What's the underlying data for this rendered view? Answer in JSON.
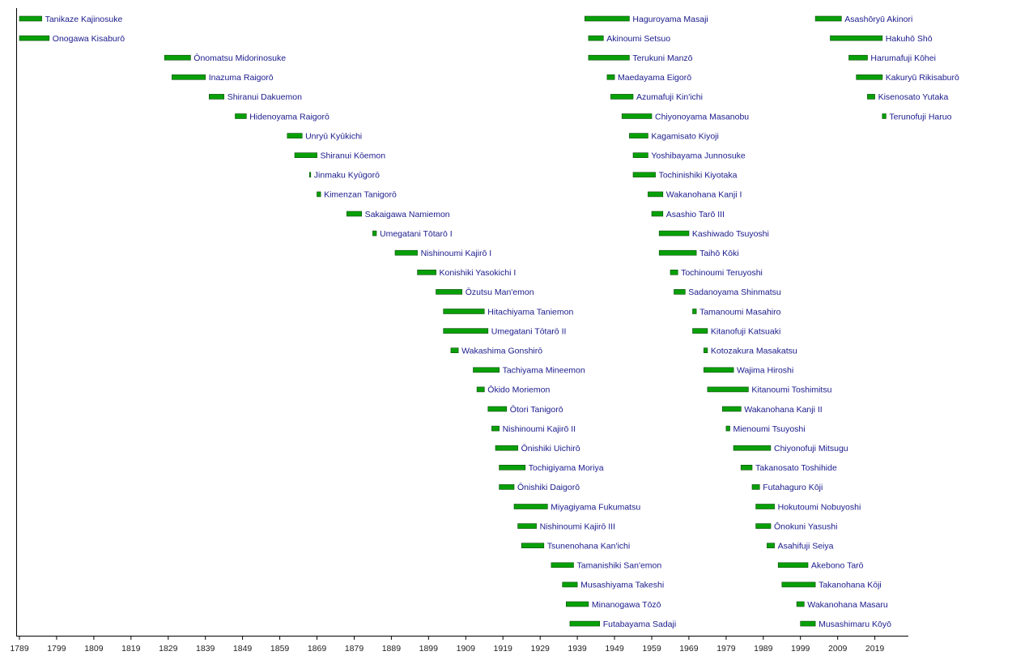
{
  "chart_data": {
    "type": "bar",
    "orientation": "horizontal-timeline",
    "title": "",
    "xlabel": "",
    "ylabel": "",
    "xlim": [
      1788,
      2025
    ],
    "grid": false,
    "legend": "none",
    "x_ticks": [
      1789,
      1799,
      1809,
      1819,
      1829,
      1839,
      1849,
      1859,
      1869,
      1879,
      1889,
      1899,
      1909,
      1919,
      1929,
      1939,
      1949,
      1959,
      1969,
      1979,
      1989,
      1999,
      2009,
      2019
    ],
    "columns": [
      [
        {
          "name": "Tanikaze Kajinosuke",
          "start": 1789,
          "end": 1795
        },
        {
          "name": "Onogawa Kisaburō",
          "start": 1789,
          "end": 1797
        },
        {
          "name": "Ōnomatsu Midorinosuke",
          "start": 1828,
          "end": 1835
        },
        {
          "name": "Inazuma Raigorō",
          "start": 1830,
          "end": 1839
        },
        {
          "name": "Shiranui Dakuemon",
          "start": 1840,
          "end": 1844
        },
        {
          "name": "Hidenoyama Raigorō",
          "start": 1847,
          "end": 1850
        },
        {
          "name": "Unryū Kyūkichi",
          "start": 1861,
          "end": 1865
        },
        {
          "name": "Shiranui Kōemon",
          "start": 1863,
          "end": 1869
        },
        {
          "name": "Jinmaku Kyūgorō",
          "start": 1867,
          "end": 1867.3
        },
        {
          "name": "Kimenzan Tanigorō",
          "start": 1869,
          "end": 1870
        },
        {
          "name": "Sakaigawa Namiemon",
          "start": 1877,
          "end": 1881
        },
        {
          "name": "Umegatani Tōtarō I",
          "start": 1884,
          "end": 1885
        },
        {
          "name": "Nishinoumi Kajirō I",
          "start": 1890,
          "end": 1896
        },
        {
          "name": "Konishiki Yasokichi I",
          "start": 1896,
          "end": 1901
        },
        {
          "name": "Ōzutsu Man'emon",
          "start": 1901,
          "end": 1908
        },
        {
          "name": "Hitachiyama Taniemon",
          "start": 1903,
          "end": 1914
        },
        {
          "name": "Umegatani Tōtarō II",
          "start": 1903,
          "end": 1915
        },
        {
          "name": "Wakashima Gonshirō",
          "start": 1905,
          "end": 1907
        },
        {
          "name": "Tachiyama Mineemon",
          "start": 1911,
          "end": 1918
        },
        {
          "name": "Ōkido Moriemon",
          "start": 1912,
          "end": 1914
        },
        {
          "name": "Ōtori Tanigorō",
          "start": 1915,
          "end": 1920
        },
        {
          "name": "Nishinoumi Kajirō II",
          "start": 1916,
          "end": 1918
        },
        {
          "name": "Ōnishiki Uichirō",
          "start": 1917,
          "end": 1923
        },
        {
          "name": "Tochigiyama Moriya",
          "start": 1918,
          "end": 1925
        },
        {
          "name": "Ōnishiki Daigorō",
          "start": 1918,
          "end": 1922
        },
        {
          "name": "Miyagiyama Fukumatsu",
          "start": 1922,
          "end": 1931
        },
        {
          "name": "Nishinoumi Kajirō III",
          "start": 1923,
          "end": 1928
        },
        {
          "name": "Tsunenohana Kan'ichi",
          "start": 1924,
          "end": 1930
        },
        {
          "name": "Tamanishiki San'emon",
          "start": 1932,
          "end": 1938
        },
        {
          "name": "Musashiyama Takeshi",
          "start": 1935,
          "end": 1939
        },
        {
          "name": "Minanogawa Tōzō",
          "start": 1936,
          "end": 1942
        },
        {
          "name": "Futabayama Sadaji",
          "start": 1937,
          "end": 1945
        }
      ],
      [
        {
          "name": "Haguroyama Masaji",
          "start": 1941,
          "end": 1953
        },
        {
          "name": "Akinoumi Setsuo",
          "start": 1942,
          "end": 1946
        },
        {
          "name": "Terukuni Manzō",
          "start": 1942,
          "end": 1953
        },
        {
          "name": "Maedayama Eigorō",
          "start": 1947,
          "end": 1949
        },
        {
          "name": "Azumafuji Kin'ichi",
          "start": 1948,
          "end": 1954
        },
        {
          "name": "Chiyonoyama Masanobu",
          "start": 1951,
          "end": 1959
        },
        {
          "name": "Kagamisato Kiyoji",
          "start": 1953,
          "end": 1958
        },
        {
          "name": "Yoshibayama Junnosuke",
          "start": 1954,
          "end": 1958
        },
        {
          "name": "Tochinishiki Kiyotaka",
          "start": 1954,
          "end": 1960
        },
        {
          "name": "Wakanohana Kanji I",
          "start": 1958,
          "end": 1962
        },
        {
          "name": "Asashio Tarō III",
          "start": 1959,
          "end": 1962
        },
        {
          "name": "Kashiwado Tsuyoshi",
          "start": 1961,
          "end": 1969
        },
        {
          "name": "Taihō Kōki",
          "start": 1961,
          "end": 1971
        },
        {
          "name": "Tochinoumi Teruyoshi",
          "start": 1964,
          "end": 1966
        },
        {
          "name": "Sadanoyama Shinmatsu",
          "start": 1965,
          "end": 1968
        },
        {
          "name": "Tamanoumi Masahiro",
          "start": 1970,
          "end": 1971
        },
        {
          "name": "Kitanofuji Katsuaki",
          "start": 1970,
          "end": 1974
        },
        {
          "name": "Kotozakura Masakatsu",
          "start": 1973,
          "end": 1974
        },
        {
          "name": "Wajima Hiroshi",
          "start": 1973,
          "end": 1981
        },
        {
          "name": "Kitanoumi Toshimitsu",
          "start": 1974,
          "end": 1985
        },
        {
          "name": "Wakanohana Kanji II",
          "start": 1978,
          "end": 1983
        },
        {
          "name": "Mienoumi Tsuyoshi",
          "start": 1979,
          "end": 1980
        },
        {
          "name": "Chiyonofuji Mitsugu",
          "start": 1981,
          "end": 1991
        },
        {
          "name": "Takanosato Toshihide",
          "start": 1983,
          "end": 1986
        },
        {
          "name": "Futahaguro Kōji",
          "start": 1986,
          "end": 1988
        },
        {
          "name": "Hokutoumi Nobuyoshi",
          "start": 1987,
          "end": 1992
        },
        {
          "name": "Ōnokuni Yasushi",
          "start": 1987,
          "end": 1991
        },
        {
          "name": "Asahifuji Seiya",
          "start": 1990,
          "end": 1992
        },
        {
          "name": "Akebono Tarō",
          "start": 1993,
          "end": 2001
        },
        {
          "name": "Takanohana Kōji",
          "start": 1994,
          "end": 2003
        },
        {
          "name": "Wakanohana Masaru",
          "start": 1998,
          "end": 2000
        },
        {
          "name": "Musashimaru Kōyō",
          "start": 1999,
          "end": 2003
        }
      ],
      [
        {
          "name": "Asashōryū Akinori",
          "start": 2003,
          "end": 2010
        },
        {
          "name": "Hakuhō Shō",
          "start": 2007,
          "end": 2021
        },
        {
          "name": "Harumafuji Kōhei",
          "start": 2012,
          "end": 2017
        },
        {
          "name": "Kakuryū Rikisaburō",
          "start": 2014,
          "end": 2021
        },
        {
          "name": "Kisenosato Yutaka",
          "start": 2017,
          "end": 2019
        },
        {
          "name": "Terunofuji Haruo",
          "start": 2021,
          "end": 2022
        }
      ]
    ]
  }
}
